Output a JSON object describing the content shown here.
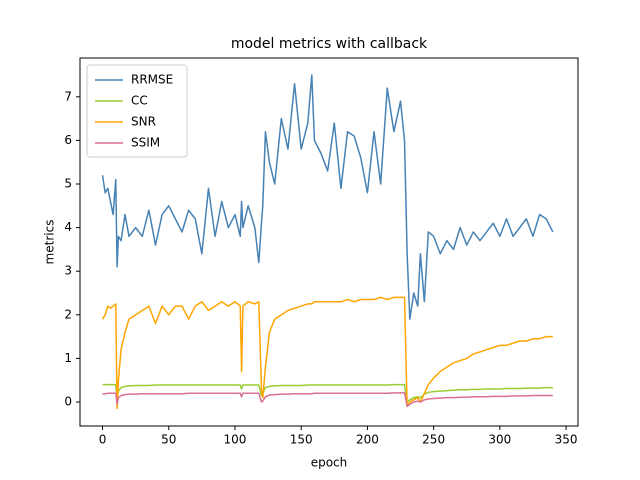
{
  "chart_data": {
    "type": "line",
    "title": "model metrics with callback",
    "x_label": "epoch",
    "y_label": "metrics",
    "x": [
      0,
      2,
      4,
      6,
      8,
      10,
      11,
      12,
      14,
      17,
      20,
      25,
      30,
      35,
      40,
      45,
      50,
      55,
      60,
      65,
      70,
      75,
      80,
      85,
      90,
      95,
      100,
      104,
      105,
      106,
      110,
      115,
      118,
      120,
      121,
      123,
      126,
      130,
      135,
      140,
      145,
      150,
      155,
      158,
      160,
      165,
      170,
      175,
      180,
      185,
      190,
      195,
      200,
      205,
      210,
      215,
      220,
      225,
      228,
      230,
      232,
      235,
      238,
      240,
      243,
      246,
      250,
      255,
      260,
      265,
      270,
      275,
      280,
      285,
      290,
      295,
      300,
      305,
      310,
      315,
      320,
      325,
      330,
      335,
      340
    ],
    "series": [
      {
        "name": "RRMSE",
        "color": "#4682b4",
        "values": [
          5.2,
          4.8,
          4.9,
          4.6,
          4.3,
          5.1,
          3.1,
          3.8,
          3.7,
          4.3,
          3.8,
          4.0,
          3.8,
          4.4,
          3.6,
          4.3,
          4.5,
          4.2,
          3.9,
          4.4,
          4.2,
          3.4,
          4.9,
          3.8,
          4.6,
          4.0,
          4.3,
          3.8,
          4.6,
          4.0,
          4.5,
          4.0,
          3.2,
          4.1,
          4.5,
          6.2,
          5.5,
          5.0,
          6.5,
          5.8,
          7.3,
          5.8,
          6.4,
          7.5,
          6.0,
          5.7,
          5.3,
          6.4,
          4.9,
          6.2,
          6.1,
          5.6,
          4.8,
          6.2,
          5.0,
          7.2,
          6.2,
          6.9,
          6.0,
          3.4,
          1.9,
          2.5,
          2.2,
          3.4,
          2.3,
          3.9,
          3.8,
          3.4,
          3.7,
          3.5,
          4.0,
          3.6,
          3.9,
          3.7,
          3.9,
          4.1,
          3.8,
          4.2,
          3.8,
          4.0,
          4.2,
          3.8,
          4.3,
          4.2,
          3.9
        ]
      },
      {
        "name": "CC",
        "color": "#9acd32",
        "values": [
          0.4,
          0.4,
          0.4,
          0.4,
          0.4,
          0.4,
          0.1,
          0.25,
          0.33,
          0.36,
          0.37,
          0.38,
          0.38,
          0.38,
          0.39,
          0.39,
          0.39,
          0.39,
          0.39,
          0.39,
          0.39,
          0.39,
          0.39,
          0.39,
          0.39,
          0.39,
          0.39,
          0.39,
          0.3,
          0.39,
          0.39,
          0.39,
          0.39,
          0.15,
          0.2,
          0.33,
          0.36,
          0.37,
          0.38,
          0.38,
          0.38,
          0.38,
          0.39,
          0.39,
          0.39,
          0.39,
          0.39,
          0.39,
          0.39,
          0.39,
          0.39,
          0.39,
          0.39,
          0.39,
          0.39,
          0.39,
          0.4,
          0.4,
          0.4,
          0.0,
          0.05,
          0.1,
          0.12,
          0.1,
          0.18,
          0.22,
          0.24,
          0.25,
          0.26,
          0.27,
          0.28,
          0.28,
          0.29,
          0.29,
          0.3,
          0.3,
          0.3,
          0.31,
          0.31,
          0.31,
          0.32,
          0.32,
          0.32,
          0.33,
          0.33
        ]
      },
      {
        "name": "SNR",
        "color": "#ffa500",
        "values": [
          1.9,
          2.0,
          2.2,
          2.15,
          2.2,
          2.25,
          -0.15,
          0.5,
          1.2,
          1.6,
          1.9,
          2.0,
          2.1,
          2.2,
          1.8,
          2.2,
          2.0,
          2.2,
          2.2,
          1.9,
          2.2,
          2.3,
          2.1,
          2.2,
          2.3,
          2.2,
          2.3,
          2.2,
          0.7,
          2.2,
          2.3,
          2.25,
          2.3,
          0.3,
          0.1,
          0.8,
          1.6,
          1.9,
          2.0,
          2.1,
          2.15,
          2.2,
          2.25,
          2.25,
          2.3,
          2.3,
          2.3,
          2.3,
          2.3,
          2.35,
          2.3,
          2.35,
          2.35,
          2.35,
          2.4,
          2.35,
          2.4,
          2.4,
          2.4,
          -0.1,
          0.0,
          0.05,
          0.1,
          0.0,
          0.2,
          0.4,
          0.55,
          0.7,
          0.8,
          0.9,
          0.95,
          1.0,
          1.1,
          1.15,
          1.2,
          1.25,
          1.3,
          1.3,
          1.35,
          1.4,
          1.4,
          1.45,
          1.45,
          1.5,
          1.5
        ]
      },
      {
        "name": "SSIM",
        "color": "#db7093",
        "values": [
          0.18,
          0.19,
          0.2,
          0.2,
          0.2,
          0.2,
          -0.05,
          0.1,
          0.15,
          0.17,
          0.18,
          0.18,
          0.19,
          0.19,
          0.19,
          0.19,
          0.19,
          0.19,
          0.19,
          0.2,
          0.2,
          0.2,
          0.2,
          0.2,
          0.2,
          0.2,
          0.2,
          0.2,
          0.12,
          0.2,
          0.2,
          0.2,
          0.2,
          0.0,
          0.02,
          0.12,
          0.16,
          0.17,
          0.18,
          0.18,
          0.19,
          0.19,
          0.19,
          0.19,
          0.2,
          0.2,
          0.2,
          0.2,
          0.2,
          0.2,
          0.2,
          0.2,
          0.2,
          0.2,
          0.2,
          0.2,
          0.21,
          0.21,
          0.21,
          -0.1,
          -0.05,
          0.0,
          0.02,
          0.0,
          0.05,
          0.07,
          0.08,
          0.09,
          0.1,
          0.1,
          0.11,
          0.11,
          0.12,
          0.12,
          0.12,
          0.13,
          0.13,
          0.13,
          0.14,
          0.14,
          0.14,
          0.15,
          0.15,
          0.15,
          0.15
        ]
      }
    ],
    "xlim": [
      -17,
      359
    ],
    "ylim": [
      -0.55,
      7.89
    ],
    "xticks": [
      0,
      50,
      100,
      150,
      200,
      250,
      300,
      350
    ],
    "yticks": [
      0,
      1,
      2,
      3,
      4,
      5,
      6,
      7
    ],
    "legend": "upper left"
  }
}
